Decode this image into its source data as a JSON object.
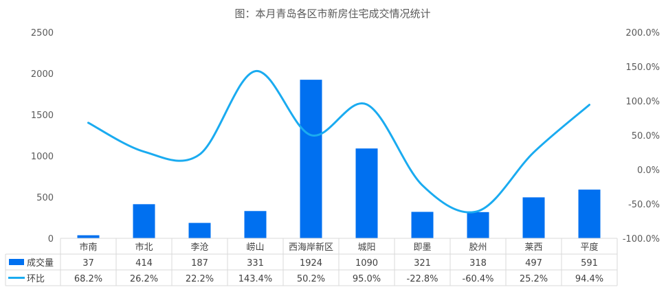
{
  "chart_data": {
    "type": "bar+line",
    "title": "图：本月青岛各区市新房住宅成交情况统计",
    "categories": [
      "市南",
      "市北",
      "李沧",
      "崂山",
      "西海岸新区",
      "城阳",
      "即墨",
      "胶州",
      "莱西",
      "平度"
    ],
    "series": [
      {
        "name": "成交量",
        "type": "bar",
        "axis": "left",
        "color": "#0070F0",
        "values": [
          37,
          414,
          187,
          331,
          1924,
          1090,
          321,
          318,
          497,
          591
        ],
        "labels": [
          "37",
          "414",
          "187",
          "331",
          "1924",
          "1090",
          "321",
          "318",
          "497",
          "591"
        ]
      },
      {
        "name": "环比",
        "type": "line",
        "axis": "right",
        "color": "#1AABF0",
        "smooth": true,
        "values": [
          68.2,
          26.2,
          22.2,
          143.4,
          50.2,
          95.0,
          -22.8,
          -60.4,
          25.2,
          94.4
        ],
        "labels": [
          "68.2%",
          "26.2%",
          "22.2%",
          "143.4%",
          "50.2%",
          "95.0%",
          "-22.8%",
          "-60.4%",
          "25.2%",
          "94.4%"
        ]
      }
    ],
    "y_left": {
      "min": 0,
      "max": 2500,
      "ticks": [
        "0",
        "500",
        "1000",
        "1500",
        "2000",
        "2500"
      ]
    },
    "y_right": {
      "min": -100,
      "max": 200,
      "ticks": [
        "-100.0%",
        "-50.0%",
        "0.0%",
        "50.0%",
        "100.0%",
        "150.0%",
        "200.0%"
      ]
    },
    "grid": false,
    "data_table": true
  }
}
